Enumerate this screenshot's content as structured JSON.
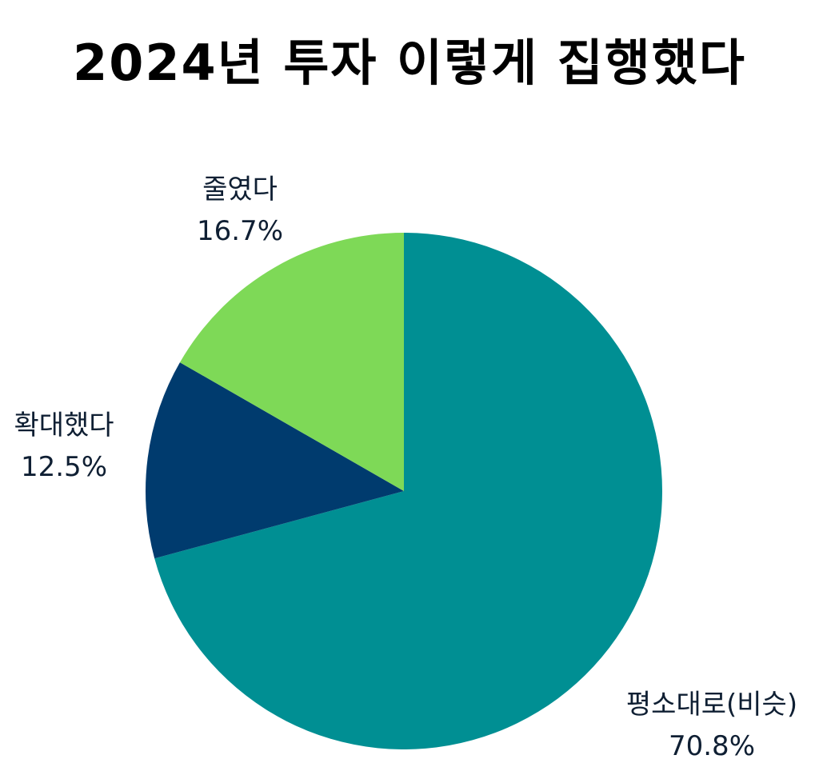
{
  "chart_data": {
    "type": "pie",
    "title": "2024년 투자 이렇게 집행했다",
    "start": "12 o'clock",
    "direction": "clockwise",
    "slices": [
      {
        "label": "평소대로(비슷)",
        "value": 70.8,
        "value_label": "70.8%",
        "color": "#008F93"
      },
      {
        "label": "확대했다",
        "value": 12.5,
        "value_label": "12.5%",
        "color": "#003B6E"
      },
      {
        "label": "줄였다",
        "value": 16.7,
        "value_label": "16.7%",
        "color": "#7ED957"
      }
    ]
  }
}
